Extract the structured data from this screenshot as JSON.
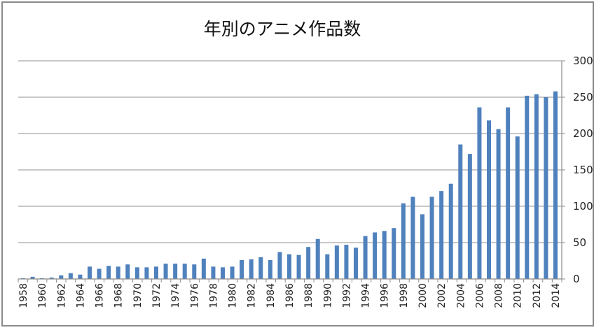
{
  "chart_data": {
    "type": "bar",
    "title": "年別のアニメ作品数",
    "xlabel": "",
    "ylabel": "",
    "ylim": [
      0,
      300
    ],
    "yticks": [
      0,
      50,
      100,
      150,
      200,
      250,
      300
    ],
    "y_axis_position": "right",
    "grid": true,
    "legend": null,
    "bar_color": "#4f81bd",
    "categories": [
      "1958",
      "1959",
      "1960",
      "1961",
      "1962",
      "1963",
      "1964",
      "1965",
      "1966",
      "1967",
      "1968",
      "1969",
      "1970",
      "1971",
      "1972",
      "1973",
      "1974",
      "1975",
      "1976",
      "1977",
      "1978",
      "1979",
      "1980",
      "1981",
      "1982",
      "1983",
      "1984",
      "1985",
      "1986",
      "1987",
      "1988",
      "1989",
      "1990",
      "1991",
      "1992",
      "1993",
      "1994",
      "1995",
      "1996",
      "1997",
      "1998",
      "1999",
      "2000",
      "2001",
      "2002",
      "2003",
      "2004",
      "2005",
      "2006",
      "2007",
      "2008",
      "2009",
      "2010",
      "2011",
      "2012",
      "2013",
      "2014"
    ],
    "x_tick_labels": [
      "1958",
      "1960",
      "1962",
      "1964",
      "1966",
      "1968",
      "1970",
      "1972",
      "1974",
      "1976",
      "1978",
      "1980",
      "1982",
      "1984",
      "1986",
      "1988",
      "1990",
      "1992",
      "1994",
      "1996",
      "1998",
      "2000",
      "2002",
      "2004",
      "2006",
      "2008",
      "2010",
      "2012",
      "2014"
    ],
    "values": [
      1,
      3,
      1,
      2,
      5,
      8,
      6,
      17,
      14,
      18,
      17,
      20,
      16,
      16,
      17,
      21,
      21,
      21,
      20,
      28,
      17,
      16,
      17,
      26,
      27,
      30,
      26,
      37,
      34,
      33,
      44,
      55,
      34,
      46,
      47,
      43,
      59,
      64,
      66,
      70,
      104,
      113,
      89,
      113,
      121,
      131,
      185,
      172,
      236,
      218,
      206,
      236,
      196,
      252,
      254,
      250,
      258
    ]
  }
}
